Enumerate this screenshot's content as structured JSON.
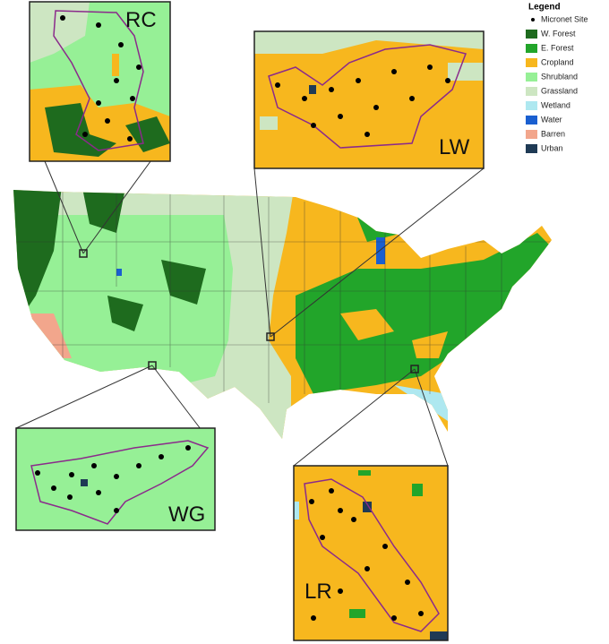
{
  "legend": {
    "title": "Legend",
    "items": [
      {
        "label": "Micronet Site",
        "color": "#000000"
      },
      {
        "label": "W. Forest",
        "color": "#1e6b1e"
      },
      {
        "label": "E. Forest",
        "color": "#22a52a"
      },
      {
        "label": "Cropland",
        "color": "#f7b71e"
      },
      {
        "label": "Shrubland",
        "color": "#96f096"
      },
      {
        "label": "Grassland",
        "color": "#cde6c2"
      },
      {
        "label": "Wetland",
        "color": "#aee8f0"
      },
      {
        "label": "Water",
        "color": "#1a5fd0"
      },
      {
        "label": "Barren",
        "color": "#f2a68c"
      },
      {
        "label": "Urban",
        "color": "#1f3a55"
      }
    ]
  },
  "insets": [
    {
      "label": "RC"
    },
    {
      "label": "LW"
    },
    {
      "label": "WG"
    },
    {
      "label": "LR"
    }
  ]
}
